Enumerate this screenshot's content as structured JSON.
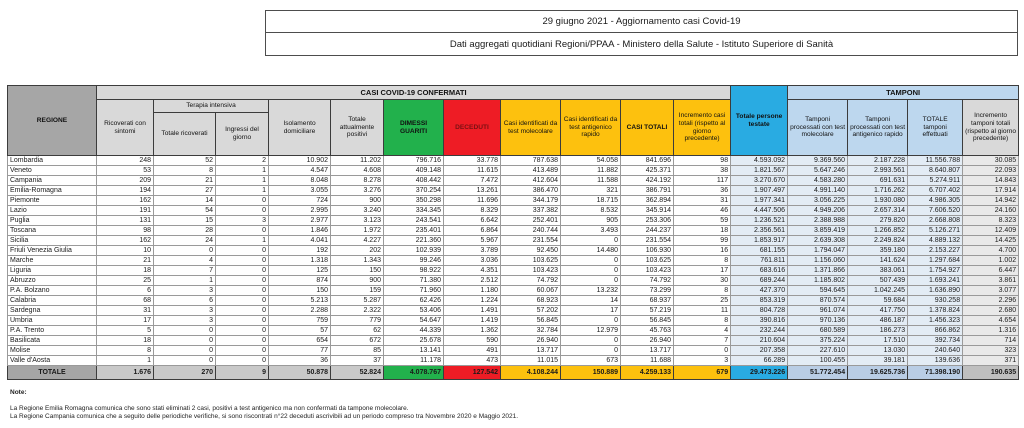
{
  "title": {
    "line1": "29 giugno 2021 - Aggiornamento casi Covid-19",
    "line2": "Dati aggregati quotidiani Regioni/PPAA - Ministero della Salute - Istituto Superiore di Sanità"
  },
  "colors": {
    "green_dimessi": "#22b14c",
    "red_deceduti": "#ee1c25",
    "yellow_casi": "#fdc10e",
    "cyan_testate": "#29abe2",
    "lightblue_tamponi": "#bdd7ee",
    "gray_header": "#d9d9d9",
    "darkgray_regione": "#a6a6a6"
  },
  "table": {
    "groups": {
      "confermati": "CASI COVID-19 CONFERMATI",
      "tamponi": "TAMPONI",
      "terapia": "Terapia intensiva"
    },
    "headers": {
      "regione": "REGIONE",
      "ricoverati": "Ricoverati con sintomi",
      "tot_ricoverati": "Totale ricoverati",
      "ingressi": "Ingressi del giorno",
      "isolamento": "Isolamento domiciliare",
      "tot_positivi": "Totale attualmente positivi",
      "dimessi": "DIMESSI GUARITI",
      "deceduti": "DECEDUTI",
      "casi_mol": "Casi identificati da test molecolare",
      "casi_ant": "Casi identificati da test antigenico rapido",
      "casi_totali": "CASI TOTALI",
      "incr_casi": "Incremento casi totali (rispetto al giorno precedente)",
      "persone_testate": "Totale persone testate",
      "tamp_mol": "Tamponi processati con test molecolare",
      "tamp_ant": "Tamponi processati con test antigenico rapido",
      "tot_tamponi": "TOTALE tamponi effettuati",
      "incr_tamponi": "Incremento tamponi totali (rispetto al giorno precedente)"
    },
    "rows": [
      {
        "region": "Lombardia",
        "values": [
          "248",
          "52",
          "2",
          "10.902",
          "11.202",
          "796.716",
          "33.778",
          "787.638",
          "54.058",
          "841.696",
          "98",
          "4.593.092",
          "9.369.560",
          "2.187.228",
          "11.556.788",
          "30.085"
        ]
      },
      {
        "region": "Veneto",
        "values": [
          "53",
          "8",
          "1",
          "4.547",
          "4.608",
          "409.148",
          "11.615",
          "413.489",
          "11.882",
          "425.371",
          "38",
          "1.821.567",
          "5.647.246",
          "2.993.561",
          "8.640.807",
          "22.093"
        ]
      },
      {
        "region": "Campania",
        "values": [
          "209",
          "21",
          "1",
          "8.048",
          "8.278",
          "408.442",
          "7.472",
          "412.604",
          "11.588",
          "424.192",
          "117",
          "3.270.670",
          "4.583.280",
          "691.631",
          "5.274.911",
          "14.843"
        ]
      },
      {
        "region": "Emilia-Romagna",
        "values": [
          "194",
          "27",
          "1",
          "3.055",
          "3.276",
          "370.254",
          "13.261",
          "386.470",
          "321",
          "386.791",
          "36",
          "1.907.497",
          "4.991.140",
          "1.716.262",
          "6.707.402",
          "17.914"
        ]
      },
      {
        "region": "Piemonte",
        "values": [
          "162",
          "14",
          "0",
          "724",
          "900",
          "350.298",
          "11.696",
          "344.179",
          "18.715",
          "362.894",
          "31",
          "1.977.341",
          "3.056.225",
          "1.930.080",
          "4.986.305",
          "14.942"
        ]
      },
      {
        "region": "Lazio",
        "values": [
          "191",
          "54",
          "0",
          "2.995",
          "3.240",
          "334.345",
          "8.329",
          "337.382",
          "8.532",
          "345.914",
          "46",
          "4.447.506",
          "4.949.206",
          "2.657.314",
          "7.606.520",
          "24.160"
        ]
      },
      {
        "region": "Puglia",
        "values": [
          "131",
          "15",
          "3",
          "2.977",
          "3.123",
          "243.541",
          "6.642",
          "252.401",
          "905",
          "253.306",
          "59",
          "1.236.521",
          "2.388.988",
          "279.820",
          "2.668.808",
          "8.323"
        ]
      },
      {
        "region": "Toscana",
        "values": [
          "98",
          "28",
          "0",
          "1.846",
          "1.972",
          "235.401",
          "6.864",
          "240.744",
          "3.493",
          "244.237",
          "18",
          "2.356.561",
          "3.859.419",
          "1.266.852",
          "5.126.271",
          "12.409"
        ]
      },
      {
        "region": "Sicilia",
        "values": [
          "162",
          "24",
          "1",
          "4.041",
          "4.227",
          "221.360",
          "5.967",
          "231.554",
          "0",
          "231.554",
          "99",
          "1.853.917",
          "2.639.308",
          "2.249.824",
          "4.889.132",
          "14.425"
        ]
      },
      {
        "region": "Friuli Venezia Giulia",
        "values": [
          "10",
          "0",
          "0",
          "192",
          "202",
          "102.939",
          "3.789",
          "92.450",
          "14.480",
          "106.930",
          "16",
          "681.155",
          "1.794.047",
          "359.180",
          "2.153.227",
          "4.700"
        ]
      },
      {
        "region": "Marche",
        "values": [
          "21",
          "4",
          "0",
          "1.318",
          "1.343",
          "99.246",
          "3.036",
          "103.625",
          "0",
          "103.625",
          "8",
          "761.811",
          "1.156.060",
          "141.624",
          "1.297.684",
          "1.002"
        ]
      },
      {
        "region": "Liguria",
        "values": [
          "18",
          "7",
          "0",
          "125",
          "150",
          "98.922",
          "4.351",
          "103.423",
          "0",
          "103.423",
          "17",
          "683.616",
          "1.371.866",
          "383.061",
          "1.754.927",
          "6.447"
        ]
      },
      {
        "region": "Abruzzo",
        "values": [
          "25",
          "1",
          "0",
          "874",
          "900",
          "71.380",
          "2.512",
          "74.792",
          "0",
          "74.792",
          "30",
          "689.244",
          "1.185.802",
          "507.439",
          "1.693.241",
          "3.861"
        ]
      },
      {
        "region": "P.A. Bolzano",
        "values": [
          "6",
          "3",
          "0",
          "150",
          "159",
          "71.960",
          "1.180",
          "60.067",
          "13.232",
          "73.299",
          "8",
          "427.370",
          "594.645",
          "1.042.245",
          "1.636.890",
          "3.077"
        ]
      },
      {
        "region": "Calabria",
        "values": [
          "68",
          "6",
          "0",
          "5.213",
          "5.287",
          "62.426",
          "1.224",
          "68.923",
          "14",
          "68.937",
          "25",
          "853.319",
          "870.574",
          "59.684",
          "930.258",
          "2.296"
        ]
      },
      {
        "region": "Sardegna",
        "values": [
          "31",
          "3",
          "0",
          "2.288",
          "2.322",
          "53.406",
          "1.491",
          "57.202",
          "17",
          "57.219",
          "11",
          "804.728",
          "961.074",
          "417.750",
          "1.378.824",
          "2.680"
        ]
      },
      {
        "region": "Umbria",
        "values": [
          "17",
          "3",
          "0",
          "759",
          "779",
          "54.647",
          "1.419",
          "56.845",
          "0",
          "56.845",
          "8",
          "390.816",
          "970.136",
          "486.187",
          "1.456.323",
          "4.654"
        ]
      },
      {
        "region": "P.A. Trento",
        "values": [
          "5",
          "0",
          "0",
          "57",
          "62",
          "44.339",
          "1.362",
          "32.784",
          "12.979",
          "45.763",
          "4",
          "232.244",
          "680.589",
          "186.273",
          "866.862",
          "1.316"
        ]
      },
      {
        "region": "Basilicata",
        "values": [
          "18",
          "0",
          "0",
          "654",
          "672",
          "25.678",
          "590",
          "26.940",
          "0",
          "26.940",
          "7",
          "210.604",
          "375.224",
          "17.510",
          "392.734",
          "714"
        ]
      },
      {
        "region": "Molise",
        "values": [
          "8",
          "0",
          "0",
          "77",
          "85",
          "13.141",
          "491",
          "13.717",
          "0",
          "13.717",
          "0",
          "207.358",
          "227.610",
          "13.030",
          "240.640",
          "323"
        ]
      },
      {
        "region": "Valle d'Aosta",
        "values": [
          "1",
          "0",
          "0",
          "36",
          "37",
          "11.178",
          "473",
          "11.015",
          "673",
          "11.688",
          "3",
          "66.289",
          "100.455",
          "39.181",
          "139.636",
          "371"
        ]
      }
    ],
    "total_row": {
      "label": "TOTALE",
      "values": [
        "1.676",
        "270",
        "9",
        "50.878",
        "52.824",
        "4.078.767",
        "127.542",
        "4.108.244",
        "150.889",
        "4.259.133",
        "679",
        "29.473.226",
        "51.772.454",
        "19.625.736",
        "71.398.190",
        "190.635"
      ]
    }
  },
  "notes": {
    "label": "Note:",
    "line1": "La Regione Emilia Romagna comunica che sono stati eliminati 2 casi, positivi a test antigenico ma non confermati da tampone molecolare.",
    "line2": "La Regione Campania comunica che a seguito delle periodiche verifiche, si sono riscontrati n°22 deceduti ascrivibili ad un periodo compreso tra Novembre 2020 e Maggio 2021."
  }
}
